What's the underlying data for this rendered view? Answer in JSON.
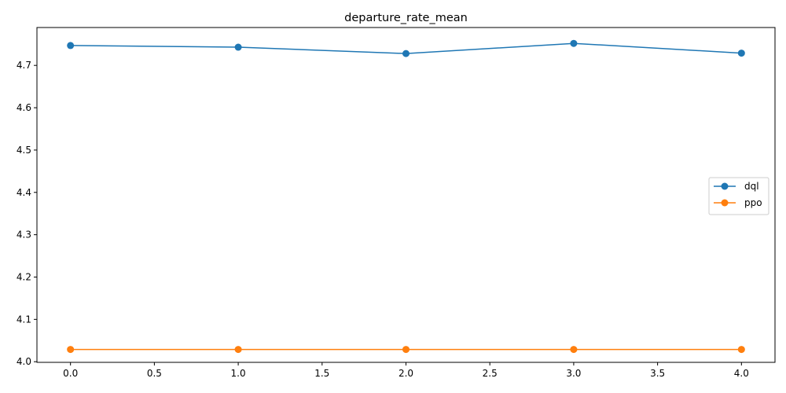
{
  "chart_data": {
    "type": "line",
    "title": "departure_rate_mean",
    "xlabel": "",
    "ylabel": "",
    "xlim": [
      -0.2,
      4.2
    ],
    "ylim": [
      3.9985,
      4.7895
    ],
    "xticks": [
      0.0,
      0.5,
      1.0,
      1.5,
      2.0,
      2.5,
      3.0,
      3.5,
      4.0
    ],
    "xtick_labels": [
      "0.0",
      "0.5",
      "1.0",
      "1.5",
      "2.0",
      "2.5",
      "3.0",
      "3.5",
      "4.0"
    ],
    "yticks": [
      4.0,
      4.1,
      4.2,
      4.3,
      4.4,
      4.5,
      4.6,
      4.7
    ],
    "ytick_labels": [
      "4.0",
      "4.1",
      "4.2",
      "4.3",
      "4.4",
      "4.5",
      "4.6",
      "4.7"
    ],
    "grid": false,
    "legend_position": "center-right",
    "x": [
      0,
      1,
      2,
      3,
      4
    ],
    "series": [
      {
        "name": "dql",
        "color": "#1f77b4",
        "marker": "circle",
        "values": [
          4.747,
          4.743,
          4.728,
          4.752,
          4.729
        ]
      },
      {
        "name": "ppo",
        "color": "#ff7f0e",
        "marker": "circle",
        "values": [
          4.029,
          4.029,
          4.029,
          4.029,
          4.029
        ]
      }
    ]
  }
}
